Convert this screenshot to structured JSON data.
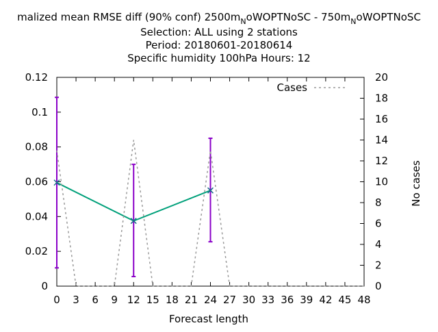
{
  "chart_data": {
    "type": "line",
    "title_lines": [
      {
        "parts": [
          "malized mean RMSE diff (90% conf) 2500m",
          "N",
          "oWOPTNoSC - 750m",
          "N",
          "oWOPTNoSC"
        ]
      },
      {
        "text": "Selection: ALL using     2 stations"
      },
      {
        "text": "Period: 20180601-20180614"
      },
      {
        "text": "Specific humidity 100hPa   Hours:  12"
      }
    ],
    "xlabel": "Forecast length",
    "ylabel": "",
    "y2label": "No cases",
    "xlim": [
      0,
      48
    ],
    "ylim": [
      0,
      0.12
    ],
    "y2lim": [
      0,
      20
    ],
    "x_ticks": [
      "0",
      "3",
      "6",
      "9",
      "12",
      "15",
      "18",
      "21",
      "24",
      "27",
      "30",
      "33",
      "36",
      "39",
      "42",
      "45",
      "48"
    ],
    "y_ticks": [
      "0",
      "0.02",
      "0.04",
      "0.06",
      "0.08",
      "0.1",
      "0.12"
    ],
    "y2_ticks": [
      "0",
      "2",
      "4",
      "6",
      "8",
      "10",
      "12",
      "14",
      "16",
      "18",
      "20"
    ],
    "legend": {
      "position": "top-right",
      "entries": [
        "Cases"
      ]
    },
    "series": [
      {
        "style": "solid",
        "color": "#00a07a",
        "axis": "y",
        "x": [
          0,
          12,
          24
        ],
        "values": [
          0.0595,
          0.0375,
          0.055
        ],
        "err_low": [
          0.0105,
          0.0055,
          0.0255
        ],
        "err_high": [
          0.1085,
          0.07,
          0.085
        ],
        "err_color": "#8a00c8"
      },
      {
        "name": "Cases",
        "style": "dashed",
        "color": "#999999",
        "axis": "y2",
        "x": [
          0,
          3,
          6,
          9,
          12,
          15,
          18,
          21,
          24,
          27,
          30,
          33,
          36,
          39,
          42,
          45,
          48
        ],
        "values": [
          13,
          0,
          0,
          0,
          14,
          0,
          0,
          0,
          13,
          0,
          0,
          0,
          0,
          0,
          0,
          0,
          0
        ]
      }
    ]
  }
}
